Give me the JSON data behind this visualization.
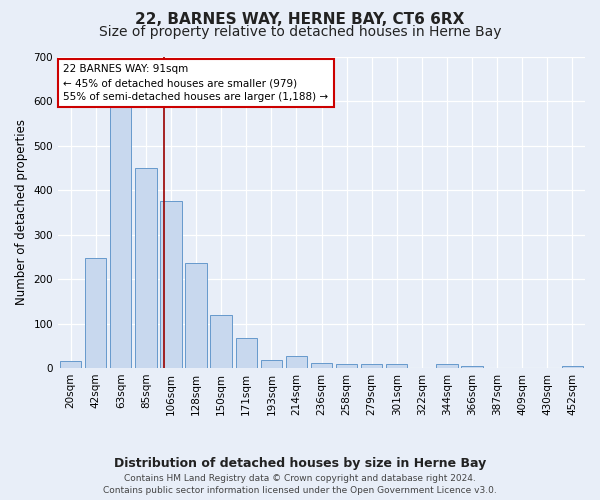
{
  "title1": "22, BARNES WAY, HERNE BAY, CT6 6RX",
  "title2": "Size of property relative to detached houses in Herne Bay",
  "xlabel": "Distribution of detached houses by size in Herne Bay",
  "ylabel": "Number of detached properties",
  "categories": [
    "20sqm",
    "42sqm",
    "63sqm",
    "85sqm",
    "106sqm",
    "128sqm",
    "150sqm",
    "171sqm",
    "193sqm",
    "214sqm",
    "236sqm",
    "258sqm",
    "279sqm",
    "301sqm",
    "322sqm",
    "344sqm",
    "366sqm",
    "387sqm",
    "409sqm",
    "430sqm",
    "452sqm"
  ],
  "values": [
    15,
    248,
    590,
    450,
    375,
    235,
    120,
    68,
    18,
    28,
    12,
    10,
    8,
    8,
    0,
    8,
    5,
    0,
    0,
    0,
    5
  ],
  "bar_color": "#c8d8ee",
  "bar_edge_color": "#6699cc",
  "vline_x": 3.72,
  "vline_color": "#990000",
  "annotation_text": "22 BARNES WAY: 91sqm\n← 45% of detached houses are smaller (979)\n55% of semi-detached houses are larger (1,188) →",
  "annotation_box_color": "#ffffff",
  "annotation_box_edge": "#cc0000",
  "ylim": [
    0,
    700
  ],
  "yticks": [
    0,
    100,
    200,
    300,
    400,
    500,
    600,
    700
  ],
  "bg_color": "#e8eef8",
  "plot_bg_color": "#e8eef8",
  "footer1": "Contains HM Land Registry data © Crown copyright and database right 2024.",
  "footer2": "Contains public sector information licensed under the Open Government Licence v3.0.",
  "title1_fontsize": 11,
  "title2_fontsize": 10,
  "xlabel_fontsize": 9,
  "ylabel_fontsize": 8.5,
  "tick_fontsize": 7.5,
  "footer_fontsize": 6.5,
  "annot_fontsize": 7.5
}
